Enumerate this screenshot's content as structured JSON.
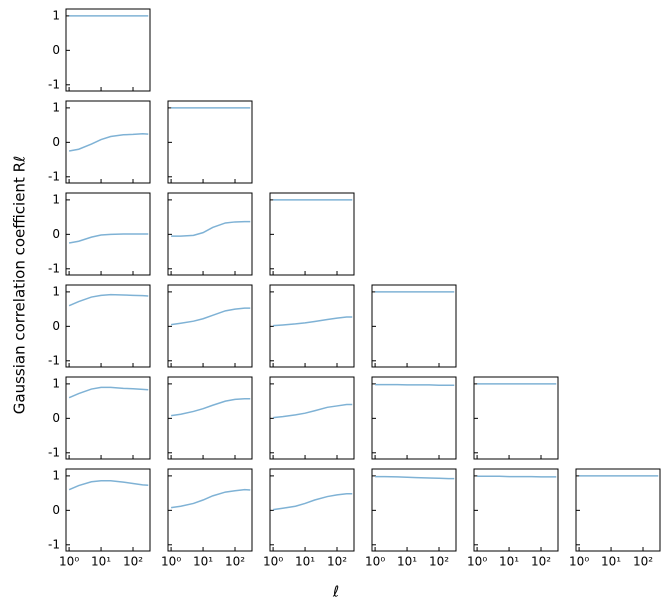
{
  "figure": {
    "xlabel": "ℓ",
    "ylabel": "Gaussian correlation coefficient Rℓ"
  },
  "chart_data": [
    {
      "type": "line",
      "x": [
        1,
        2,
        5,
        10,
        20,
        50,
        100,
        200,
        300
      ],
      "series": [
        {
          "color": "#7fb2d5",
          "values": [
            1,
            1,
            1,
            1,
            1,
            1,
            1,
            1,
            1
          ]
        }
      ],
      "xlim": [
        0.8,
        340
      ],
      "ylim": [
        -1.18,
        1.2
      ],
      "log_x": true,
      "xticks": [
        {
          "value": 1,
          "label": "10⁰"
        },
        {
          "value": 10,
          "label": "10¹"
        },
        {
          "value": 100,
          "label": "10²"
        }
      ],
      "yticks": [
        -1,
        0,
        1
      ]
    },
    {
      "type": "line",
      "x": [
        1,
        2,
        5,
        10,
        20,
        50,
        100,
        200,
        300
      ],
      "series": [
        {
          "color": "#7fb2d5",
          "values": [
            -0.25,
            -0.2,
            -0.05,
            0.08,
            0.17,
            0.22,
            0.23,
            0.25,
            0.24
          ]
        }
      ],
      "xlim": [
        0.8,
        340
      ],
      "ylim": [
        -1.18,
        1.2
      ],
      "log_x": true,
      "xticks": [
        {
          "value": 1,
          "label": "10⁰"
        },
        {
          "value": 10,
          "label": "10¹"
        },
        {
          "value": 100,
          "label": "10²"
        }
      ],
      "yticks": [
        -1,
        0,
        1
      ]
    },
    {
      "type": "line",
      "x": [
        1,
        2,
        5,
        10,
        20,
        50,
        100,
        200,
        300
      ],
      "series": [
        {
          "color": "#7fb2d5",
          "values": [
            1,
            1,
            1,
            1,
            1,
            1,
            1,
            1,
            1
          ]
        }
      ],
      "xlim": [
        0.8,
        340
      ],
      "ylim": [
        -1.18,
        1.2
      ],
      "log_x": true,
      "xticks": [
        {
          "value": 1,
          "label": "10⁰"
        },
        {
          "value": 10,
          "label": "10¹"
        },
        {
          "value": 100,
          "label": "10²"
        }
      ],
      "yticks": [
        -1,
        0,
        1
      ]
    },
    {
      "type": "line",
      "x": [
        1,
        2,
        5,
        10,
        20,
        50,
        100,
        200,
        300
      ],
      "series": [
        {
          "color": "#7fb2d5",
          "values": [
            -0.25,
            -0.2,
            -0.08,
            -0.02,
            0,
            0.01,
            0.01,
            0.01,
            0.01
          ]
        }
      ],
      "xlim": [
        0.8,
        340
      ],
      "ylim": [
        -1.18,
        1.2
      ],
      "log_x": true,
      "xticks": [
        {
          "value": 1,
          "label": "10⁰"
        },
        {
          "value": 10,
          "label": "10¹"
        },
        {
          "value": 100,
          "label": "10²"
        }
      ],
      "yticks": [
        -1,
        0,
        1
      ]
    },
    {
      "type": "line",
      "x": [
        1,
        2,
        5,
        10,
        20,
        50,
        100,
        200,
        300
      ],
      "series": [
        {
          "color": "#7fb2d5",
          "values": [
            -0.05,
            -0.05,
            -0.03,
            0.05,
            0.2,
            0.33,
            0.36,
            0.37,
            0.37
          ]
        }
      ],
      "xlim": [
        0.8,
        340
      ],
      "ylim": [
        -1.18,
        1.2
      ],
      "log_x": true,
      "xticks": [
        {
          "value": 1,
          "label": "10⁰"
        },
        {
          "value": 10,
          "label": "10¹"
        },
        {
          "value": 100,
          "label": "10²"
        }
      ],
      "yticks": [
        -1,
        0,
        1
      ]
    },
    {
      "type": "line",
      "x": [
        1,
        2,
        5,
        10,
        20,
        50,
        100,
        200,
        300
      ],
      "series": [
        {
          "color": "#7fb2d5",
          "values": [
            1,
            1,
            1,
            1,
            1,
            1,
            1,
            1,
            1
          ]
        }
      ],
      "xlim": [
        0.8,
        340
      ],
      "ylim": [
        -1.18,
        1.2
      ],
      "log_x": true,
      "xticks": [
        {
          "value": 1,
          "label": "10⁰"
        },
        {
          "value": 10,
          "label": "10¹"
        },
        {
          "value": 100,
          "label": "10²"
        }
      ],
      "yticks": [
        -1,
        0,
        1
      ]
    },
    {
      "type": "line",
      "x": [
        1,
        2,
        5,
        10,
        20,
        50,
        100,
        200,
        300
      ],
      "series": [
        {
          "color": "#7fb2d5",
          "values": [
            0.6,
            0.72,
            0.85,
            0.9,
            0.92,
            0.91,
            0.9,
            0.89,
            0.88
          ]
        }
      ],
      "xlim": [
        0.8,
        340
      ],
      "ylim": [
        -1.18,
        1.2
      ],
      "log_x": true,
      "xticks": [
        {
          "value": 1,
          "label": "10⁰"
        },
        {
          "value": 10,
          "label": "10¹"
        },
        {
          "value": 100,
          "label": "10²"
        }
      ],
      "yticks": [
        -1,
        0,
        1
      ]
    },
    {
      "type": "line",
      "x": [
        1,
        2,
        5,
        10,
        20,
        50,
        100,
        200,
        300
      ],
      "series": [
        {
          "color": "#7fb2d5",
          "values": [
            0.05,
            0.09,
            0.15,
            0.22,
            0.32,
            0.45,
            0.5,
            0.53,
            0.53
          ]
        }
      ],
      "xlim": [
        0.8,
        340
      ],
      "ylim": [
        -1.18,
        1.2
      ],
      "log_x": true,
      "xticks": [
        {
          "value": 1,
          "label": "10⁰"
        },
        {
          "value": 10,
          "label": "10¹"
        },
        {
          "value": 100,
          "label": "10²"
        }
      ],
      "yticks": [
        -1,
        0,
        1
      ]
    },
    {
      "type": "line",
      "x": [
        1,
        2,
        5,
        10,
        20,
        50,
        100,
        200,
        300
      ],
      "series": [
        {
          "color": "#7fb2d5",
          "values": [
            0.02,
            0.04,
            0.07,
            0.1,
            0.14,
            0.2,
            0.24,
            0.27,
            0.27
          ]
        }
      ],
      "xlim": [
        0.8,
        340
      ],
      "ylim": [
        -1.18,
        1.2
      ],
      "log_x": true,
      "xticks": [
        {
          "value": 1,
          "label": "10⁰"
        },
        {
          "value": 10,
          "label": "10¹"
        },
        {
          "value": 100,
          "label": "10²"
        }
      ],
      "yticks": [
        -1,
        0,
        1
      ]
    },
    {
      "type": "line",
      "x": [
        1,
        2,
        5,
        10,
        20,
        50,
        100,
        200,
        300
      ],
      "series": [
        {
          "color": "#7fb2d5",
          "values": [
            1,
            1,
            1,
            1,
            1,
            1,
            1,
            1,
            1
          ]
        }
      ],
      "xlim": [
        0.8,
        340
      ],
      "ylim": [
        -1.18,
        1.2
      ],
      "log_x": true,
      "xticks": [
        {
          "value": 1,
          "label": "10⁰"
        },
        {
          "value": 10,
          "label": "10¹"
        },
        {
          "value": 100,
          "label": "10²"
        }
      ],
      "yticks": [
        -1,
        0,
        1
      ]
    },
    {
      "type": "line",
      "x": [
        1,
        2,
        5,
        10,
        20,
        50,
        100,
        200,
        300
      ],
      "series": [
        {
          "color": "#7fb2d5",
          "values": [
            0.6,
            0.72,
            0.85,
            0.9,
            0.9,
            0.87,
            0.86,
            0.84,
            0.83
          ]
        }
      ],
      "xlim": [
        0.8,
        340
      ],
      "ylim": [
        -1.18,
        1.2
      ],
      "log_x": true,
      "xticks": [
        {
          "value": 1,
          "label": "10⁰"
        },
        {
          "value": 10,
          "label": "10¹"
        },
        {
          "value": 100,
          "label": "10²"
        }
      ],
      "yticks": [
        -1,
        0,
        1
      ]
    },
    {
      "type": "line",
      "x": [
        1,
        2,
        5,
        10,
        20,
        50,
        100,
        200,
        300
      ],
      "series": [
        {
          "color": "#7fb2d5",
          "values": [
            0.08,
            0.12,
            0.2,
            0.28,
            0.38,
            0.5,
            0.55,
            0.57,
            0.57
          ]
        }
      ],
      "xlim": [
        0.8,
        340
      ],
      "ylim": [
        -1.18,
        1.2
      ],
      "log_x": true,
      "xticks": [
        {
          "value": 1,
          "label": "10⁰"
        },
        {
          "value": 10,
          "label": "10¹"
        },
        {
          "value": 100,
          "label": "10²"
        }
      ],
      "yticks": [
        -1,
        0,
        1
      ]
    },
    {
      "type": "line",
      "x": [
        1,
        2,
        5,
        10,
        20,
        50,
        100,
        200,
        300
      ],
      "series": [
        {
          "color": "#7fb2d5",
          "values": [
            0.02,
            0.05,
            0.1,
            0.15,
            0.22,
            0.32,
            0.36,
            0.4,
            0.4
          ]
        }
      ],
      "xlim": [
        0.8,
        340
      ],
      "ylim": [
        -1.18,
        1.2
      ],
      "log_x": true,
      "xticks": [
        {
          "value": 1,
          "label": "10⁰"
        },
        {
          "value": 10,
          "label": "10¹"
        },
        {
          "value": 100,
          "label": "10²"
        }
      ],
      "yticks": [
        -1,
        0,
        1
      ]
    },
    {
      "type": "line",
      "x": [
        1,
        2,
        5,
        10,
        20,
        50,
        100,
        200,
        300
      ],
      "series": [
        {
          "color": "#7fb2d5",
          "values": [
            0.98,
            0.98,
            0.98,
            0.97,
            0.97,
            0.97,
            0.96,
            0.96,
            0.96
          ]
        }
      ],
      "xlim": [
        0.8,
        340
      ],
      "ylim": [
        -1.18,
        1.2
      ],
      "log_x": true,
      "xticks": [
        {
          "value": 1,
          "label": "10⁰"
        },
        {
          "value": 10,
          "label": "10¹"
        },
        {
          "value": 100,
          "label": "10²"
        }
      ],
      "yticks": [
        -1,
        0,
        1
      ]
    },
    {
      "type": "line",
      "x": [
        1,
        2,
        5,
        10,
        20,
        50,
        100,
        200,
        300
      ],
      "series": [
        {
          "color": "#7fb2d5",
          "values": [
            1,
            1,
            1,
            1,
            1,
            1,
            1,
            1,
            1
          ]
        }
      ],
      "xlim": [
        0.8,
        340
      ],
      "ylim": [
        -1.18,
        1.2
      ],
      "log_x": true,
      "xticks": [
        {
          "value": 1,
          "label": "10⁰"
        },
        {
          "value": 10,
          "label": "10¹"
        },
        {
          "value": 100,
          "label": "10²"
        }
      ],
      "yticks": [
        -1,
        0,
        1
      ]
    },
    {
      "type": "line",
      "x": [
        1,
        2,
        5,
        10,
        20,
        50,
        100,
        200,
        300
      ],
      "series": [
        {
          "color": "#7fb2d5",
          "values": [
            0.6,
            0.72,
            0.83,
            0.86,
            0.86,
            0.82,
            0.78,
            0.74,
            0.73
          ]
        }
      ],
      "xlim": [
        0.8,
        340
      ],
      "ylim": [
        -1.18,
        1.2
      ],
      "log_x": true,
      "xticks": [
        {
          "value": 1,
          "label": "10⁰"
        },
        {
          "value": 10,
          "label": "10¹"
        },
        {
          "value": 100,
          "label": "10²"
        }
      ],
      "yticks": [
        -1,
        0,
        1
      ]
    },
    {
      "type": "line",
      "x": [
        1,
        2,
        5,
        10,
        20,
        50,
        100,
        200,
        300
      ],
      "series": [
        {
          "color": "#7fb2d5",
          "values": [
            0.08,
            0.12,
            0.2,
            0.3,
            0.42,
            0.53,
            0.57,
            0.6,
            0.59
          ]
        }
      ],
      "xlim": [
        0.8,
        340
      ],
      "ylim": [
        -1.18,
        1.2
      ],
      "log_x": true,
      "xticks": [
        {
          "value": 1,
          "label": "10⁰"
        },
        {
          "value": 10,
          "label": "10¹"
        },
        {
          "value": 100,
          "label": "10²"
        }
      ],
      "yticks": [
        -1,
        0,
        1
      ]
    },
    {
      "type": "line",
      "x": [
        1,
        2,
        5,
        10,
        20,
        50,
        100,
        200,
        300
      ],
      "series": [
        {
          "color": "#7fb2d5",
          "values": [
            0.02,
            0.06,
            0.12,
            0.2,
            0.3,
            0.4,
            0.45,
            0.48,
            0.48
          ]
        }
      ],
      "xlim": [
        0.8,
        340
      ],
      "ylim": [
        -1.18,
        1.2
      ],
      "log_x": true,
      "xticks": [
        {
          "value": 1,
          "label": "10⁰"
        },
        {
          "value": 10,
          "label": "10¹"
        },
        {
          "value": 100,
          "label": "10²"
        }
      ],
      "yticks": [
        -1,
        0,
        1
      ]
    },
    {
      "type": "line",
      "x": [
        1,
        2,
        5,
        10,
        20,
        50,
        100,
        200,
        300
      ],
      "series": [
        {
          "color": "#7fb2d5",
          "values": [
            0.98,
            0.98,
            0.97,
            0.96,
            0.95,
            0.94,
            0.93,
            0.92,
            0.92
          ]
        }
      ],
      "xlim": [
        0.8,
        340
      ],
      "ylim": [
        -1.18,
        1.2
      ],
      "log_x": true,
      "xticks": [
        {
          "value": 1,
          "label": "10⁰"
        },
        {
          "value": 10,
          "label": "10¹"
        },
        {
          "value": 100,
          "label": "10²"
        }
      ],
      "yticks": [
        -1,
        0,
        1
      ]
    },
    {
      "type": "line",
      "x": [
        1,
        2,
        5,
        10,
        20,
        50,
        100,
        200,
        300
      ],
      "series": [
        {
          "color": "#7fb2d5",
          "values": [
            0.99,
            0.99,
            0.99,
            0.98,
            0.98,
            0.98,
            0.97,
            0.97,
            0.97
          ]
        }
      ],
      "xlim": [
        0.8,
        340
      ],
      "ylim": [
        -1.18,
        1.2
      ],
      "log_x": true,
      "xticks": [
        {
          "value": 1,
          "label": "10⁰"
        },
        {
          "value": 10,
          "label": "10¹"
        },
        {
          "value": 100,
          "label": "10²"
        }
      ],
      "yticks": [
        -1,
        0,
        1
      ]
    },
    {
      "type": "line",
      "x": [
        1,
        2,
        5,
        10,
        20,
        50,
        100,
        200,
        300
      ],
      "series": [
        {
          "color": "#7fb2d5",
          "values": [
            1,
            1,
            1,
            1,
            1,
            1,
            1,
            1,
            1
          ]
        }
      ],
      "xlim": [
        0.8,
        340
      ],
      "ylim": [
        -1.18,
        1.2
      ],
      "log_x": true,
      "xticks": [
        {
          "value": 1,
          "label": "10⁰"
        },
        {
          "value": 10,
          "label": "10¹"
        },
        {
          "value": 100,
          "label": "10²"
        }
      ],
      "yticks": [
        -1,
        0,
        1
      ]
    }
  ]
}
